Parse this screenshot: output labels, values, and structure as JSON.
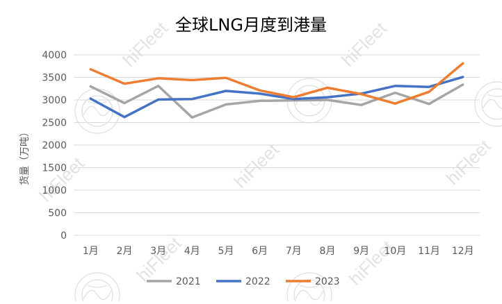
{
  "chart_data": {
    "type": "line",
    "title": "全球LNG月度到港量",
    "ylabel": "货量（万吨）",
    "xlabel": "",
    "categories": [
      "1月",
      "2月",
      "3月",
      "4月",
      "5月",
      "6月",
      "7月",
      "8月",
      "9月",
      "10月",
      "11月",
      "12月"
    ],
    "ylim": [
      0,
      4000
    ],
    "yticks": [
      0,
      500,
      1000,
      1500,
      2000,
      2500,
      3000,
      3500,
      4000
    ],
    "grid": true,
    "legend_position": "bottom",
    "series": [
      {
        "name": "2021",
        "color": "#A5A5A5",
        "values": [
          3300,
          2930,
          3310,
          2610,
          2900,
          2980,
          2990,
          3000,
          2890,
          3160,
          2910,
          3340
        ]
      },
      {
        "name": "2022",
        "color": "#4472C4",
        "values": [
          3030,
          2620,
          3010,
          3020,
          3200,
          3140,
          3020,
          3060,
          3140,
          3310,
          3290,
          3510
        ]
      },
      {
        "name": "2023",
        "color": "#ED7D31",
        "values": [
          3680,
          3360,
          3480,
          3440,
          3490,
          3210,
          3060,
          3270,
          3130,
          2920,
          3180,
          3810
        ]
      }
    ]
  },
  "watermark": {
    "text": "hiFleet",
    "seal_icon": "dragon-seal-icon"
  }
}
